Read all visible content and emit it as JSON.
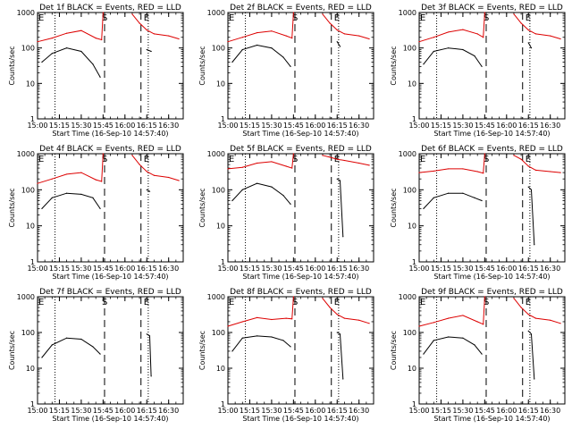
{
  "figure": {
    "start_time_label": "Start Time (16-Sep-10 14:57:40)",
    "ylabel": "Counts/sec",
    "x_tick_labels": [
      "15:00",
      "15:15",
      "15:30",
      "15:45",
      "16:00",
      "16:15",
      "16:30"
    ],
    "y_tick_labels": [
      "1",
      "10",
      "100",
      "1000"
    ],
    "markers": {
      "start": "S",
      "end": "E",
      "det_marker": "E"
    },
    "colors": {
      "events": "#000000",
      "lld": "#dd0000"
    }
  },
  "chart_data": [
    {
      "type": "line",
      "title": "Det 1f BLACK = Events, RED = LLD",
      "xlabel": "Start Time (16-Sep-10 14:57:40)",
      "ylabel": "Counts/sec",
      "xlim": [
        "15:00",
        "16:40"
      ],
      "ylim": [
        1,
        1000
      ],
      "yscale": "log",
      "series": [
        {
          "name": "Events",
          "x": [
            "15:03",
            "15:10",
            "15:20",
            "15:30",
            "15:38",
            "15:43"
          ],
          "values": [
            40,
            70,
            100,
            80,
            35,
            15
          ]
        },
        {
          "name": "Events",
          "x": [
            "16:15",
            "16:18"
          ],
          "values": [
            90,
            80
          ]
        },
        {
          "name": "LLD",
          "x": [
            "15:00",
            "15:10",
            "15:20",
            "15:30",
            "15:40",
            "15:44",
            "15:45"
          ],
          "values": [
            150,
            190,
            260,
            310,
            190,
            170,
            1000
          ]
        },
        {
          "name": "LLD",
          "x": [
            "16:05",
            "16:10",
            "16:15",
            "16:20",
            "16:30",
            "16:37"
          ],
          "values": [
            900,
            500,
            320,
            250,
            220,
            180
          ]
        }
      ]
    },
    {
      "type": "line",
      "title": "Det 2f BLACK = Events, RED = LLD",
      "xlabel": "Start Time (16-Sep-10 14:57:40)",
      "ylabel": "Counts/sec",
      "xlim": [
        "15:00",
        "16:40"
      ],
      "ylim": [
        1,
        1000
      ],
      "yscale": "log",
      "series": [
        {
          "name": "Events",
          "x": [
            "15:03",
            "15:10",
            "15:20",
            "15:30",
            "15:38",
            "15:43"
          ],
          "values": [
            40,
            90,
            120,
            100,
            55,
            30
          ]
        },
        {
          "name": "Events",
          "x": [
            "16:15",
            "16:17"
          ],
          "values": [
            150,
            110
          ]
        },
        {
          "name": "LLD",
          "x": [
            "15:00",
            "15:10",
            "15:20",
            "15:30",
            "15:40",
            "15:44",
            "15:45"
          ],
          "values": [
            150,
            200,
            270,
            300,
            220,
            190,
            1000
          ]
        },
        {
          "name": "LLD",
          "x": [
            "16:05",
            "16:10",
            "16:15",
            "16:20",
            "16:30",
            "16:37"
          ],
          "values": [
            900,
            500,
            320,
            250,
            220,
            180
          ]
        }
      ]
    },
    {
      "type": "line",
      "title": "Det 3f BLACK = Events, RED = LLD",
      "xlabel": "Start Time (16-Sep-10 14:57:40)",
      "ylabel": "Counts/sec",
      "xlim": [
        "15:00",
        "16:40"
      ],
      "ylim": [
        1,
        1000
      ],
      "yscale": "log",
      "series": [
        {
          "name": "Events",
          "x": [
            "15:03",
            "15:10",
            "15:20",
            "15:30",
            "15:38",
            "15:43"
          ],
          "values": [
            35,
            80,
            100,
            90,
            60,
            30
          ]
        },
        {
          "name": "Events",
          "x": [
            "16:15",
            "16:17"
          ],
          "values": [
            140,
            100
          ]
        },
        {
          "name": "LLD",
          "x": [
            "15:00",
            "15:10",
            "15:20",
            "15:30",
            "15:40",
            "15:44",
            "15:45"
          ],
          "values": [
            150,
            200,
            280,
            330,
            250,
            200,
            1000
          ]
        },
        {
          "name": "LLD",
          "x": [
            "16:05",
            "16:10",
            "16:15",
            "16:20",
            "16:30",
            "16:37"
          ],
          "values": [
            900,
            500,
            320,
            250,
            220,
            180
          ]
        }
      ]
    },
    {
      "type": "line",
      "title": "Det 4f BLACK = Events, RED = LLD",
      "xlabel": "Start Time (16-Sep-10 14:57:40)",
      "ylabel": "Counts/sec",
      "xlim": [
        "15:00",
        "16:40"
      ],
      "ylim": [
        1,
        1000
      ],
      "yscale": "log",
      "series": [
        {
          "name": "Events",
          "x": [
            "15:03",
            "15:10",
            "15:20",
            "15:30",
            "15:38",
            "15:43"
          ],
          "values": [
            30,
            60,
            80,
            75,
            60,
            30
          ]
        },
        {
          "name": "Events",
          "x": [
            "16:15",
            "16:17"
          ],
          "values": [
            100,
            90
          ]
        },
        {
          "name": "LLD",
          "x": [
            "15:00",
            "15:10",
            "15:20",
            "15:30",
            "15:40",
            "15:44",
            "15:45"
          ],
          "values": [
            150,
            200,
            270,
            300,
            190,
            170,
            1000
          ]
        },
        {
          "name": "LLD",
          "x": [
            "16:05",
            "16:10",
            "16:15",
            "16:20",
            "16:30",
            "16:37"
          ],
          "values": [
            900,
            500,
            320,
            250,
            220,
            180
          ]
        }
      ]
    },
    {
      "type": "line",
      "title": "Det 5f BLACK = Events, RED = LLD",
      "xlabel": "Start Time (16-Sep-10 14:57:40)",
      "ylabel": "Counts/sec",
      "xlim": [
        "15:00",
        "16:40"
      ],
      "ylim": [
        1,
        1000
      ],
      "yscale": "log",
      "series": [
        {
          "name": "Events",
          "x": [
            "15:03",
            "15:10",
            "15:20",
            "15:30",
            "15:38",
            "15:43"
          ],
          "values": [
            50,
            100,
            150,
            120,
            70,
            40
          ]
        },
        {
          "name": "Events",
          "x": [
            "16:15",
            "16:17",
            "16:19"
          ],
          "values": [
            200,
            180,
            5
          ]
        },
        {
          "name": "LLD",
          "x": [
            "15:00",
            "15:10",
            "15:20",
            "15:30",
            "15:40",
            "15:44",
            "15:45"
          ],
          "values": [
            380,
            420,
            550,
            600,
            450,
            400,
            1000
          ]
        },
        {
          "name": "LLD",
          "x": [
            "16:05",
            "16:10",
            "16:15",
            "16:20",
            "16:30",
            "16:37"
          ],
          "values": [
            900,
            800,
            700,
            650,
            550,
            480
          ]
        }
      ]
    },
    {
      "type": "line",
      "title": "Det 6f BLACK = Events, RED = LLD",
      "xlabel": "Start Time (16-Sep-10 14:57:40)",
      "ylabel": "Counts/sec",
      "xlim": [
        "15:00",
        "16:40"
      ],
      "ylim": [
        1,
        1000
      ],
      "yscale": "log",
      "series": [
        {
          "name": "Events",
          "x": [
            "15:03",
            "15:10",
            "15:20",
            "15:30",
            "15:38",
            "15:43"
          ],
          "values": [
            30,
            60,
            80,
            80,
            60,
            50
          ]
        },
        {
          "name": "Events",
          "x": [
            "16:15",
            "16:17",
            "16:19"
          ],
          "values": [
            120,
            100,
            3
          ]
        },
        {
          "name": "LLD",
          "x": [
            "15:00",
            "15:10",
            "15:20",
            "15:30",
            "15:40",
            "15:44",
            "15:45"
          ],
          "values": [
            300,
            330,
            380,
            380,
            320,
            290,
            1000
          ]
        },
        {
          "name": "LLD",
          "x": [
            "16:05",
            "16:10",
            "16:15",
            "16:20",
            "16:30",
            "16:37"
          ],
          "values": [
            900,
            700,
            450,
            350,
            320,
            300
          ]
        }
      ]
    },
    {
      "type": "line",
      "title": "Det 7f BLACK = Events, RED = LLD",
      "xlabel": "Start Time (16-Sep-10 14:57:40)",
      "ylabel": "Counts/sec",
      "xlim": [
        "15:00",
        "16:40"
      ],
      "ylim": [
        1,
        1000
      ],
      "yscale": "log",
      "series": [
        {
          "name": "Events",
          "x": [
            "15:03",
            "15:10",
            "15:20",
            "15:30",
            "15:38",
            "15:43"
          ],
          "values": [
            20,
            45,
            70,
            65,
            40,
            25
          ]
        },
        {
          "name": "Events",
          "x": [
            "16:15",
            "16:17",
            "16:18"
          ],
          "values": [
            90,
            80,
            6
          ]
        }
      ]
    },
    {
      "type": "line",
      "title": "Det 8f BLACK = Events, RED = LLD",
      "xlabel": "Start Time (16-Sep-10 14:57:40)",
      "ylabel": "Counts/sec",
      "xlim": [
        "15:00",
        "16:40"
      ],
      "ylim": [
        1,
        1000
      ],
      "yscale": "log",
      "series": [
        {
          "name": "Events",
          "x": [
            "15:03",
            "15:10",
            "15:20",
            "15:30",
            "15:38",
            "15:43"
          ],
          "values": [
            30,
            70,
            80,
            75,
            60,
            40
          ]
        },
        {
          "name": "Events",
          "x": [
            "16:15",
            "16:17",
            "16:19"
          ],
          "values": [
            100,
            90,
            5
          ]
        },
        {
          "name": "LLD",
          "x": [
            "15:00",
            "15:10",
            "15:20",
            "15:30",
            "15:40",
            "15:44",
            "15:45"
          ],
          "values": [
            150,
            200,
            260,
            230,
            250,
            240,
            1000
          ]
        },
        {
          "name": "LLD",
          "x": [
            "16:05",
            "16:10",
            "16:15",
            "16:20",
            "16:30",
            "16:37"
          ],
          "values": [
            900,
            500,
            320,
            250,
            220,
            180
          ]
        }
      ]
    },
    {
      "type": "line",
      "title": "Det 9f BLACK = Events, RED = LLD",
      "xlabel": "Start Time (16-Sep-10 14:57:40)",
      "ylabel": "Counts/sec",
      "xlim": [
        "15:00",
        "16:40"
      ],
      "ylim": [
        1,
        1000
      ],
      "yscale": "log",
      "series": [
        {
          "name": "Events",
          "x": [
            "15:03",
            "15:10",
            "15:20",
            "15:30",
            "15:38",
            "15:43"
          ],
          "values": [
            25,
            60,
            75,
            70,
            45,
            25
          ]
        },
        {
          "name": "Events",
          "x": [
            "16:15",
            "16:17",
            "16:19"
          ],
          "values": [
            110,
            90,
            5
          ]
        },
        {
          "name": "LLD",
          "x": [
            "15:00",
            "15:10",
            "15:20",
            "15:30",
            "15:40",
            "15:44",
            "15:45"
          ],
          "values": [
            150,
            190,
            250,
            300,
            200,
            170,
            1000
          ]
        },
        {
          "name": "LLD",
          "x": [
            "16:05",
            "16:10",
            "16:15",
            "16:20",
            "16:30",
            "16:37"
          ],
          "values": [
            900,
            500,
            320,
            250,
            220,
            180
          ]
        }
      ]
    }
  ]
}
